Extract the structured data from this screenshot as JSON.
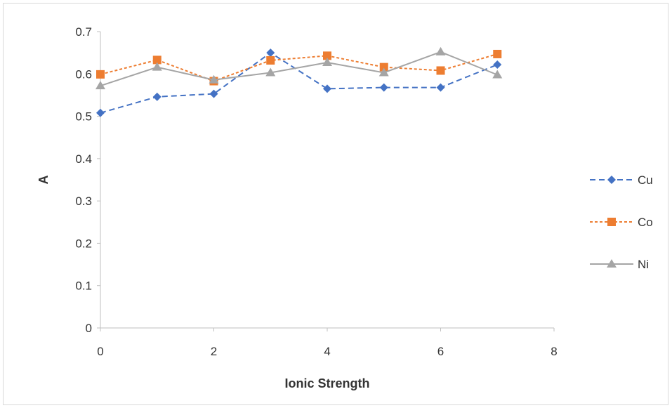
{
  "chart_data": {
    "type": "line",
    "title": "",
    "xlabel": "Ionic Strength",
    "ylabel": "A",
    "xlim": [
      0,
      8
    ],
    "ylim": [
      0,
      0.7
    ],
    "xticks": [
      0,
      2,
      4,
      6,
      8
    ],
    "yticks": [
      0,
      0.1,
      0.2,
      0.3,
      0.4,
      0.5,
      0.6,
      0.7
    ],
    "xtick_labels": [
      "0",
      "2",
      "4",
      "6",
      "8"
    ],
    "ytick_labels": [
      "0",
      "0.1",
      "0.2",
      "0.3",
      "0.4",
      "0.5",
      "0.6",
      "0.7"
    ],
    "grid": false,
    "legend_position": "right",
    "x": [
      0,
      1,
      2,
      3,
      4,
      5,
      6,
      7
    ],
    "series": [
      {
        "name": "Cu",
        "values": [
          0.508,
          0.546,
          0.553,
          0.65,
          0.565,
          0.568,
          0.568,
          0.622
        ],
        "color": "#4472C4",
        "marker": "diamond",
        "line": "dashed"
      },
      {
        "name": "Co",
        "values": [
          0.599,
          0.633,
          0.583,
          0.632,
          0.643,
          0.616,
          0.608,
          0.647
        ],
        "color": "#ED7D31",
        "marker": "square",
        "line": "dotted"
      },
      {
        "name": "Ni",
        "values": [
          0.572,
          0.616,
          0.586,
          0.603,
          0.627,
          0.603,
          0.652,
          0.598
        ],
        "color": "#A5A5A5",
        "marker": "triangle",
        "line": "solid"
      }
    ]
  }
}
